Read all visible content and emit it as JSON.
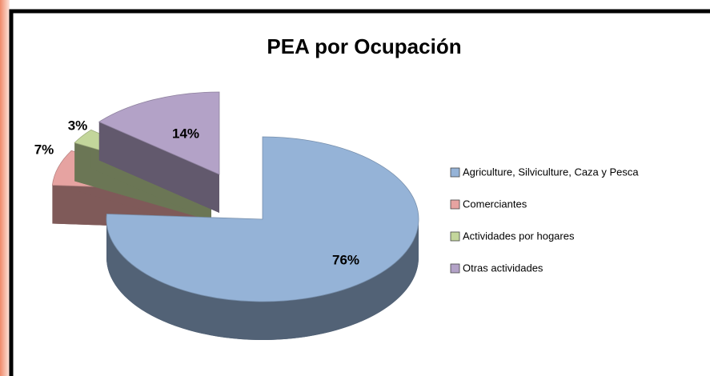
{
  "chart_data": {
    "type": "pie",
    "title": "PEA por Ocupación",
    "categories": [
      "Agriculture, Silviculture, Caza y Pesca",
      "Comerciantes",
      "Actividades por hogares",
      "Otras actividades"
    ],
    "values": [
      76,
      7,
      3,
      14
    ],
    "value_labels": [
      "76%",
      "7%",
      "3%",
      "14%"
    ],
    "colors": [
      "#95b3d7",
      "#e6a3a1",
      "#c3d69b",
      "#b3a2c7"
    ],
    "legend": "right"
  }
}
